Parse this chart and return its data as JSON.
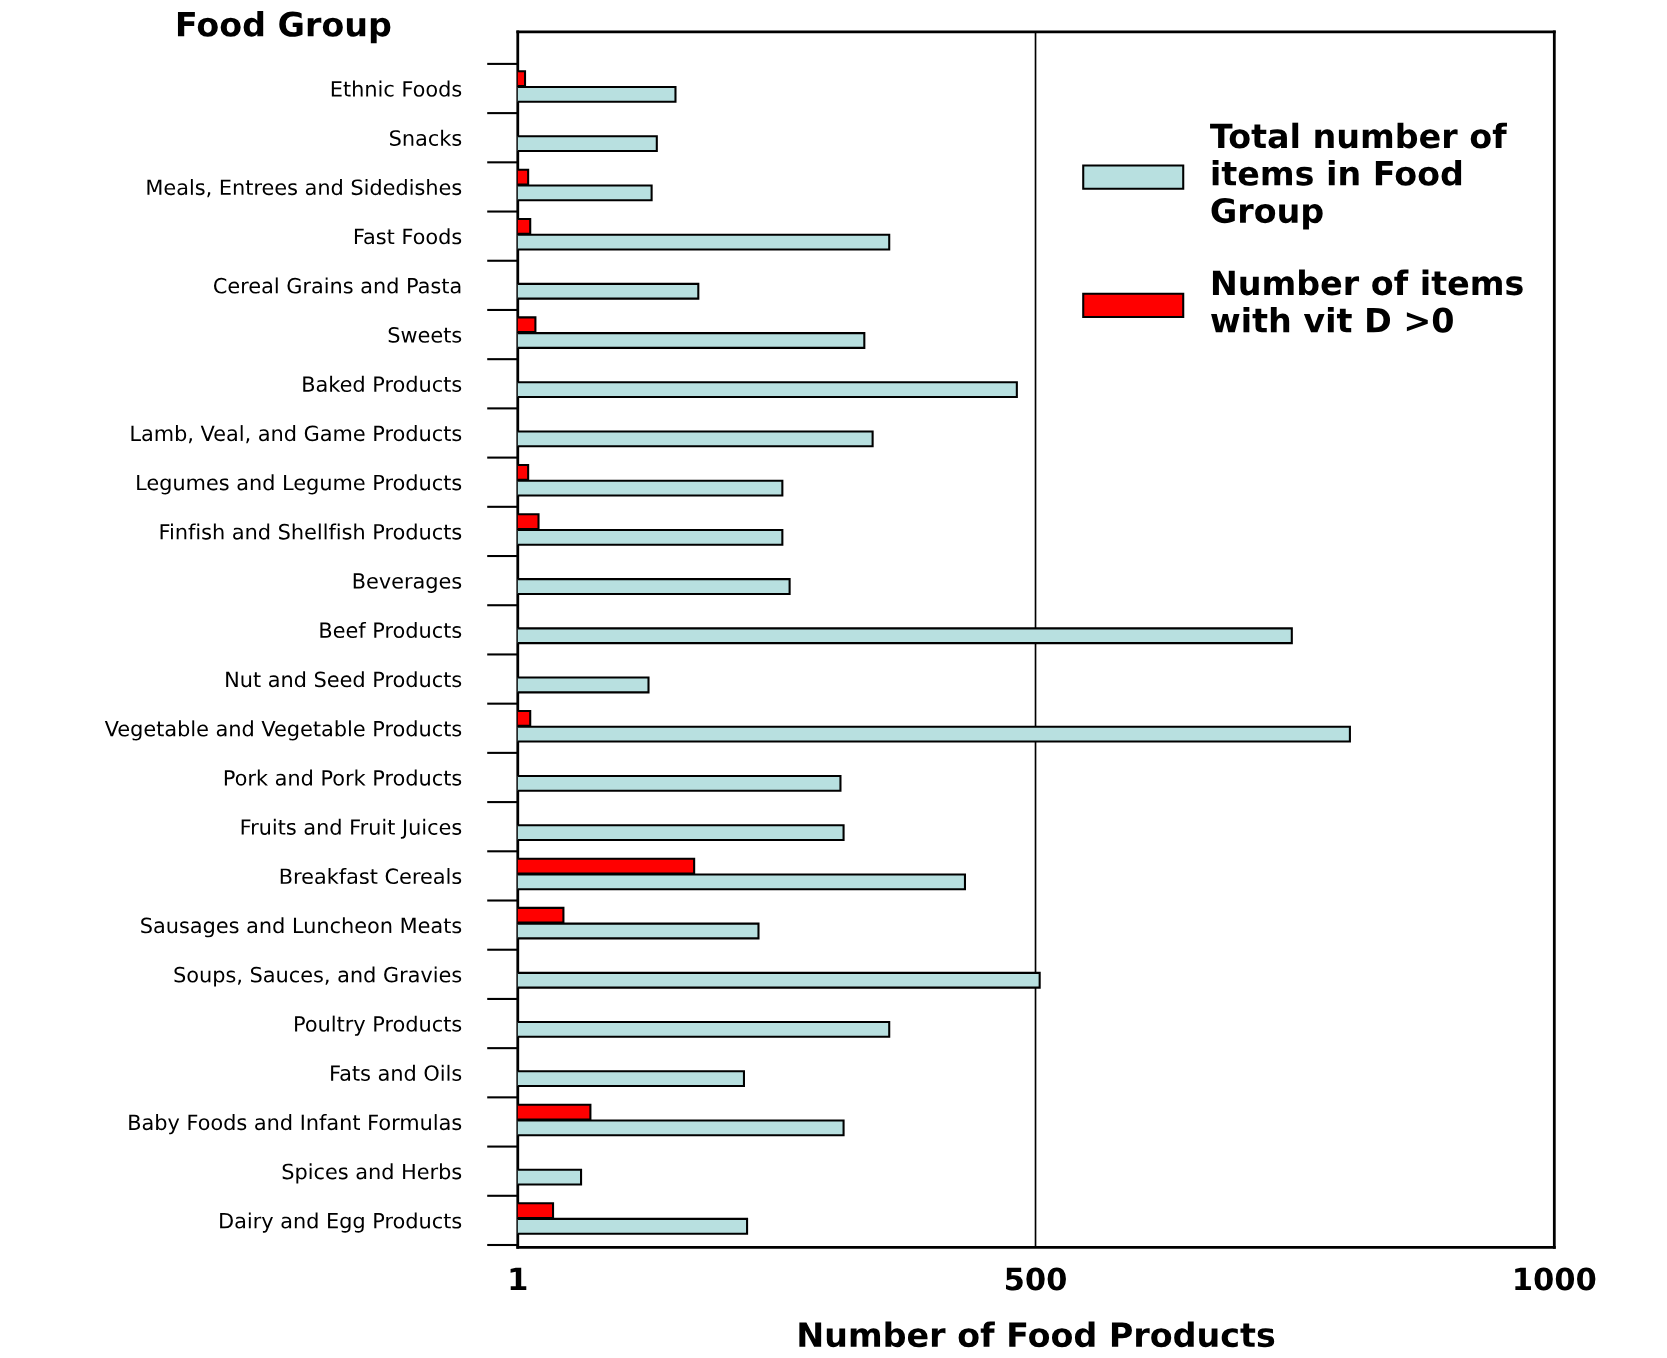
{
  "chart_data": {
    "type": "bar",
    "orientation": "horizontal",
    "ylabel": "Food Group",
    "xlabel": "Number of Food Products",
    "categories": [
      "Ethnic Foods",
      "Snacks",
      "Meals, Entrees and Sidedishes",
      "Fast Foods",
      "Cereal Grains and Pasta",
      "Sweets",
      "Baked Products",
      "Lamb, Veal, and Game Products",
      "Legumes and Legume Products",
      "Finfish and Shellfish Products",
      "Beverages",
      "Beef Products",
      "Nut and Seed Products",
      "Vegetable and Vegetable Products",
      "Pork and Pork Products",
      "Fruits and Fruit Juices",
      "Breakfast Cereals",
      "Sausages and Luncheon Meats",
      "Soups, Sauces, and Gravies",
      "Poultry Products",
      "Fats and Oils",
      "Baby Foods and Infant Formulas",
      "Spices and Herbs",
      "Dairy and Egg Products"
    ],
    "series": [
      {
        "name": "Total number of items in Food Group",
        "color": "#b8e0e0",
        "values": [
          153,
          135,
          130,
          359,
          175,
          335,
          482,
          343,
          256,
          256,
          263,
          747,
          127,
          803,
          312,
          315,
          432,
          233,
          504,
          359,
          219,
          315,
          62,
          222
        ]
      },
      {
        "name": "Number of items with vit D >0",
        "color": "#ff0000",
        "values": [
          8,
          null,
          11,
          13,
          null,
          18,
          null,
          null,
          11,
          21,
          null,
          null,
          null,
          13,
          null,
          null,
          171,
          45,
          null,
          null,
          null,
          71,
          null,
          35
        ]
      }
    ],
    "xlim": [
      1,
      1000
    ],
    "xticks": [
      1,
      500,
      1000
    ],
    "grid": "x",
    "legend": "top right"
  }
}
